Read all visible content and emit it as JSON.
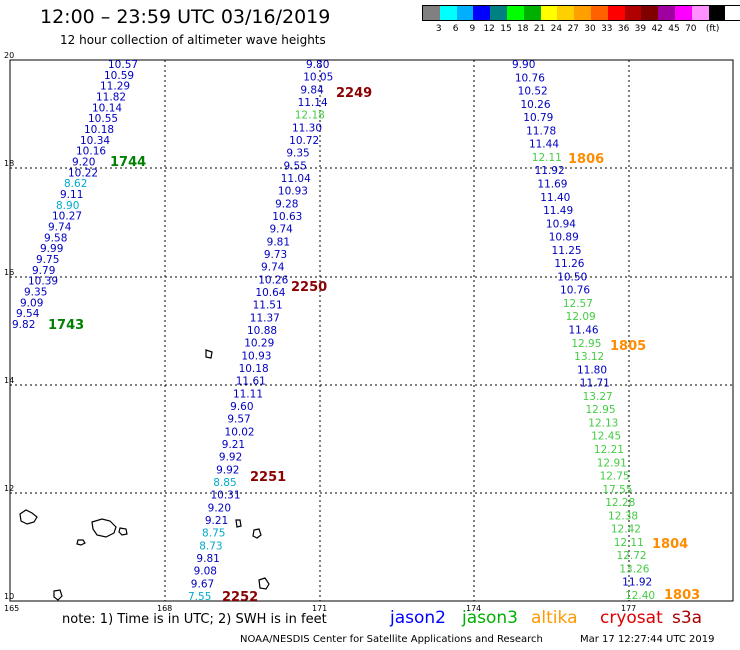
{
  "header": {
    "title": "12:00 – 23:59 UTC 03/16/2019",
    "subtitle": "12 hour collection of altimeter wave heights"
  },
  "colorbar": {
    "colors": [
      "#808080",
      "#00ffff",
      "#00b0ff",
      "#0000ff",
      "#008080",
      "#00ff00",
      "#00b000",
      "#ffff00",
      "#ffd000",
      "#ffa000",
      "#ff6000",
      "#ff0000",
      "#b00000",
      "#800000",
      "#a000a0",
      "#ff00ff",
      "#ff90ff",
      "#000000"
    ],
    "labels": [
      "3",
      "6",
      "9",
      "12",
      "15",
      "18",
      "21",
      "24",
      "27",
      "30",
      "33",
      "36",
      "39",
      "42",
      "45",
      "70",
      "(ft)"
    ]
  },
  "axes": {
    "lat_labels": [
      "20",
      "18",
      "16",
      "14",
      "12",
      "10"
    ],
    "lon_labels": [
      "165",
      "168",
      "171",
      "174",
      "177"
    ]
  },
  "tracks": [
    {
      "name": "left_track",
      "values": [
        {
          "v": "10.57",
          "c": "#0000c0"
        },
        {
          "v": "10.59",
          "c": "#0000c0"
        },
        {
          "v": "11.29",
          "c": "#0000c0"
        },
        {
          "v": "11.82",
          "c": "#0000c0"
        },
        {
          "v": "10.14",
          "c": "#0000c0"
        },
        {
          "v": "10.55",
          "c": "#0000c0"
        },
        {
          "v": "10.18",
          "c": "#0000c0"
        },
        {
          "v": "10.34",
          "c": "#0000c0"
        },
        {
          "v": "10.16",
          "c": "#0000c0"
        },
        {
          "v": "9.20",
          "c": "#0000c0"
        },
        {
          "v": "10.22",
          "c": "#0000c0"
        },
        {
          "v": "8.62",
          "c": "#00aacc"
        },
        {
          "v": "9.11",
          "c": "#0000c0"
        },
        {
          "v": "8.90",
          "c": "#00aacc"
        },
        {
          "v": "10.27",
          "c": "#0000c0"
        },
        {
          "v": "9.74",
          "c": "#0000c0"
        },
        {
          "v": "9.58",
          "c": "#0000c0"
        },
        {
          "v": "9.99",
          "c": "#0000c0"
        },
        {
          "v": "9.75",
          "c": "#0000c0"
        },
        {
          "v": "9.79",
          "c": "#0000c0"
        },
        {
          "v": "10.39",
          "c": "#0000c0"
        },
        {
          "v": "9.35",
          "c": "#0000c0"
        },
        {
          "v": "9.09",
          "c": "#0000c0"
        },
        {
          "v": "9.54",
          "c": "#0000c0"
        },
        {
          "v": "9.82",
          "c": "#0000c0"
        }
      ]
    },
    {
      "name": "middle_track",
      "values": [
        {
          "v": "9.80",
          "c": "#0000c0"
        },
        {
          "v": "10.05",
          "c": "#0000c0"
        },
        {
          "v": "9.84",
          "c": "#0000c0"
        },
        {
          "v": "11.14",
          "c": "#0000c0"
        },
        {
          "v": "12.18",
          "c": "#44cc44"
        },
        {
          "v": "11.30",
          "c": "#0000c0"
        },
        {
          "v": "10.72",
          "c": "#0000c0"
        },
        {
          "v": "9.35",
          "c": "#0000c0"
        },
        {
          "v": "9.55",
          "c": "#0000c0"
        },
        {
          "v": "11.04",
          "c": "#0000c0"
        },
        {
          "v": "10.93",
          "c": "#0000c0"
        },
        {
          "v": "9.28",
          "c": "#0000c0"
        },
        {
          "v": "10.63",
          "c": "#0000c0"
        },
        {
          "v": "9.74",
          "c": "#0000c0"
        },
        {
          "v": "9.81",
          "c": "#0000c0"
        },
        {
          "v": "9.73",
          "c": "#0000c0"
        },
        {
          "v": "9.74",
          "c": "#0000c0"
        },
        {
          "v": "10.26",
          "c": "#0000c0"
        },
        {
          "v": "10.64",
          "c": "#0000c0"
        },
        {
          "v": "11.51",
          "c": "#0000c0"
        },
        {
          "v": "11.37",
          "c": "#0000c0"
        },
        {
          "v": "10.88",
          "c": "#0000c0"
        },
        {
          "v": "10.29",
          "c": "#0000c0"
        },
        {
          "v": "10.93",
          "c": "#0000c0"
        },
        {
          "v": "10.18",
          "c": "#0000c0"
        },
        {
          "v": "11.61",
          "c": "#0000c0"
        },
        {
          "v": "11.11",
          "c": "#0000c0"
        },
        {
          "v": "9.60",
          "c": "#0000c0"
        },
        {
          "v": "9.57",
          "c": "#0000c0"
        },
        {
          "v": "10.02",
          "c": "#0000c0"
        },
        {
          "v": "9.21",
          "c": "#0000c0"
        },
        {
          "v": "9.92",
          "c": "#0000c0"
        },
        {
          "v": "9.92",
          "c": "#0000c0"
        },
        {
          "v": "8.85",
          "c": "#00aacc"
        },
        {
          "v": "10.31",
          "c": "#0000c0"
        },
        {
          "v": "9.20",
          "c": "#0000c0"
        },
        {
          "v": "9.21",
          "c": "#0000c0"
        },
        {
          "v": "8.75",
          "c": "#00aacc"
        },
        {
          "v": "8.73",
          "c": "#00aacc"
        },
        {
          "v": "9.81",
          "c": "#0000c0"
        },
        {
          "v": "9.08",
          "c": "#0000c0"
        },
        {
          "v": "9.67",
          "c": "#0000c0"
        },
        {
          "v": "7.55",
          "c": "#00aacc"
        }
      ]
    },
    {
      "name": "right_track",
      "values": [
        {
          "v": "9.90",
          "c": "#0000c0"
        },
        {
          "v": "10.76",
          "c": "#0000c0"
        },
        {
          "v": "10.52",
          "c": "#0000c0"
        },
        {
          "v": "10.26",
          "c": "#0000c0"
        },
        {
          "v": "10.79",
          "c": "#0000c0"
        },
        {
          "v": "11.78",
          "c": "#0000c0"
        },
        {
          "v": "11.44",
          "c": "#0000c0"
        },
        {
          "v": "12.11",
          "c": "#44cc44"
        },
        {
          "v": "11.92",
          "c": "#0000c0"
        },
        {
          "v": "11.69",
          "c": "#0000c0"
        },
        {
          "v": "11.40",
          "c": "#0000c0"
        },
        {
          "v": "11.49",
          "c": "#0000c0"
        },
        {
          "v": "10.94",
          "c": "#0000c0"
        },
        {
          "v": "10.89",
          "c": "#0000c0"
        },
        {
          "v": "11.25",
          "c": "#0000c0"
        },
        {
          "v": "11.26",
          "c": "#0000c0"
        },
        {
          "v": "10.50",
          "c": "#0000c0"
        },
        {
          "v": "10.76",
          "c": "#0000c0"
        },
        {
          "v": "12.57",
          "c": "#44cc44"
        },
        {
          "v": "12.09",
          "c": "#44cc44"
        },
        {
          "v": "11.46",
          "c": "#0000c0"
        },
        {
          "v": "12.95",
          "c": "#44cc44"
        },
        {
          "v": "13.12",
          "c": "#44cc44"
        },
        {
          "v": "11.80",
          "c": "#0000c0"
        },
        {
          "v": "11.71",
          "c": "#0000c0"
        },
        {
          "v": "13.27",
          "c": "#44cc44"
        },
        {
          "v": "12.95",
          "c": "#44cc44"
        },
        {
          "v": "12.13",
          "c": "#44cc44"
        },
        {
          "v": "12.45",
          "c": "#44cc44"
        },
        {
          "v": "12.21",
          "c": "#44cc44"
        },
        {
          "v": "12.91",
          "c": "#44cc44"
        },
        {
          "v": "12.75",
          "c": "#44cc44"
        },
        {
          "v": "17.55",
          "c": "#44cc44"
        },
        {
          "v": "12.28",
          "c": "#44cc44"
        },
        {
          "v": "12.38",
          "c": "#44cc44"
        },
        {
          "v": "12.42",
          "c": "#44cc44"
        },
        {
          "v": "12.11",
          "c": "#44cc44"
        },
        {
          "v": "12.72",
          "c": "#44cc44"
        },
        {
          "v": "13.26",
          "c": "#44cc44"
        },
        {
          "v": "11.92",
          "c": "#0000c0"
        },
        {
          "v": "12.40",
          "c": "#44cc44"
        }
      ]
    }
  ],
  "time_labels": [
    {
      "t": "2249",
      "c": "#8b0000"
    },
    {
      "t": "1744",
      "c": "#008000"
    },
    {
      "t": "1806",
      "c": "#ff8c00"
    },
    {
      "t": "2250",
      "c": "#8b0000"
    },
    {
      "t": "1743",
      "c": "#008000"
    },
    {
      "t": "1805",
      "c": "#ff8c00"
    },
    {
      "t": "2251",
      "c": "#8b0000"
    },
    {
      "t": "1804",
      "c": "#ff8c00"
    },
    {
      "t": "2252",
      "c": "#8b0000"
    },
    {
      "t": "1803",
      "c": "#ff8c00"
    }
  ],
  "footer": {
    "note": "note: 1) Time is in UTC; 2) SWH is in feet",
    "satellites": [
      {
        "name": "jason2",
        "color": "#0000ff"
      },
      {
        "name": "jason3",
        "color": "#00b000"
      },
      {
        "name": "altika",
        "color": "#ff9900"
      },
      {
        "name": "cryosat",
        "color": "#dd0000"
      },
      {
        "name": "s3a",
        "color": "#aa0000"
      }
    ],
    "credit": "NOAA/NESDIS Center for Satellite Applications and Research",
    "date": "Mar 17 12:27:44 UTC 2019"
  }
}
